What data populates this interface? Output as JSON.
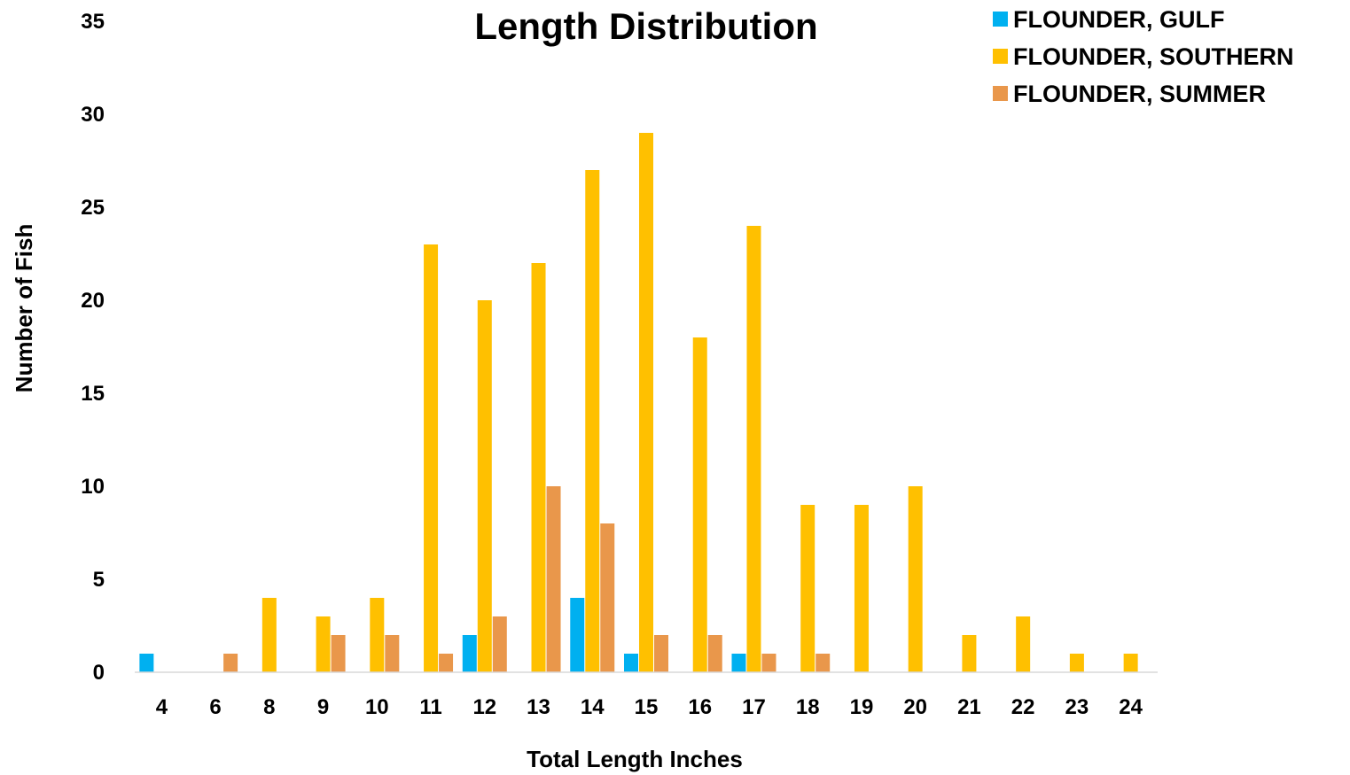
{
  "chart_data": {
    "type": "bar",
    "title": "Length Distribution",
    "xlabel": "Total Length Inches",
    "ylabel": "Number of Fish",
    "categories": [
      "4",
      "6",
      "8",
      "9",
      "10",
      "11",
      "12",
      "13",
      "14",
      "15",
      "16",
      "17",
      "18",
      "19",
      "20",
      "21",
      "22",
      "23",
      "24"
    ],
    "series": [
      {
        "name": "FLOUNDER, GULF",
        "color": "#00B0F0",
        "values": [
          1,
          0,
          0,
          0,
          0,
          0,
          2,
          0,
          4,
          1,
          0,
          1,
          0,
          0,
          0,
          0,
          0,
          0,
          0
        ]
      },
      {
        "name": "FLOUNDER, SOUTHERN",
        "color": "#FFC000",
        "values": [
          0,
          0,
          4,
          3,
          4,
          23,
          20,
          22,
          27,
          29,
          18,
          24,
          9,
          9,
          10,
          2,
          3,
          1,
          1
        ]
      },
      {
        "name": "FLOUNDER, SUMMER",
        "color": "#E9974B",
        "values": [
          0,
          1,
          0,
          2,
          2,
          1,
          3,
          10,
          8,
          2,
          2,
          1,
          1,
          0,
          0,
          0,
          0,
          0,
          0
        ]
      }
    ],
    "ylim": [
      0,
      35
    ],
    "yticks": [
      0,
      5,
      10,
      15,
      20,
      25,
      30,
      35
    ],
    "grid": false,
    "legend_position": "top-right"
  }
}
